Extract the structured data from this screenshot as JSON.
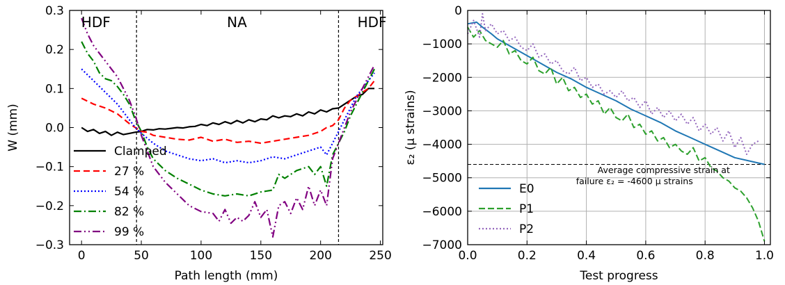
{
  "chart_data": [
    {
      "type": "line",
      "xlabel": "Path length (mm)",
      "ylabel": "W (mm)",
      "xlim": [
        -10,
        252
      ],
      "ylim": [
        -0.3,
        0.3
      ],
      "xticks": [
        "0",
        "50",
        "100",
        "150",
        "200",
        "250"
      ],
      "yticks": [
        "−0.3",
        "−0.2",
        "−0.1",
        "0.0",
        "0.1",
        "0.2",
        "0.3"
      ],
      "xtick_values": [
        0,
        50,
        100,
        150,
        200,
        250
      ],
      "ytick_values": [
        -0.3,
        -0.2,
        -0.1,
        0.0,
        0.1,
        0.2,
        0.3
      ],
      "grid": false,
      "legend": "lower-left",
      "vlines": [
        46,
        215
      ],
      "region_labels": [
        {
          "text": "HDF",
          "x": 12
        },
        {
          "text": "NA",
          "x": 130
        },
        {
          "text": "HDF",
          "x": 243
        }
      ],
      "series": [
        {
          "name": "Clamped",
          "color": "#000000",
          "dash": "",
          "x": [
            0,
            5,
            10,
            15,
            20,
            25,
            30,
            35,
            40,
            45,
            50,
            55,
            60,
            65,
            70,
            75,
            80,
            85,
            90,
            95,
            100,
            105,
            110,
            115,
            120,
            125,
            130,
            135,
            140,
            145,
            150,
            155,
            160,
            165,
            170,
            175,
            180,
            185,
            190,
            195,
            200,
            205,
            210,
            215,
            220,
            225,
            230,
            235,
            240,
            245
          ],
          "y": [
            0.0,
            -0.01,
            -0.005,
            -0.015,
            -0.01,
            -0.02,
            -0.012,
            -0.018,
            -0.015,
            -0.012,
            -0.01,
            -0.005,
            -0.006,
            -0.003,
            -0.004,
            -0.002,
            0.0,
            -0.001,
            0.002,
            0.003,
            0.008,
            0.005,
            0.012,
            0.008,
            0.015,
            0.01,
            0.018,
            0.012,
            0.02,
            0.015,
            0.022,
            0.02,
            0.03,
            0.025,
            0.03,
            0.028,
            0.035,
            0.03,
            0.04,
            0.035,
            0.045,
            0.04,
            0.048,
            0.05,
            0.06,
            0.07,
            0.08,
            0.085,
            0.1,
            0.1
          ]
        },
        {
          "name": "27 %",
          "color": "#ff0000",
          "dash": "9,5",
          "x": [
            0,
            10,
            20,
            30,
            40,
            45,
            50,
            55,
            60,
            70,
            80,
            90,
            100,
            110,
            120,
            130,
            140,
            150,
            160,
            170,
            180,
            190,
            200,
            205,
            210,
            215,
            220,
            225,
            230,
            235,
            240,
            245
          ],
          "y": [
            0.075,
            0.06,
            0.05,
            0.035,
            0.01,
            0.0,
            -0.01,
            -0.012,
            -0.02,
            -0.025,
            -0.03,
            -0.032,
            -0.025,
            -0.035,
            -0.03,
            -0.038,
            -0.035,
            -0.04,
            -0.035,
            -0.03,
            -0.025,
            -0.02,
            -0.01,
            0.0,
            0.005,
            0.02,
            0.05,
            0.07,
            0.08,
            0.09,
            0.1,
            0.12
          ]
        },
        {
          "name": "54 %",
          "color": "#0000ff",
          "dash": "2,3",
          "x": [
            0,
            10,
            20,
            30,
            40,
            45,
            50,
            60,
            70,
            80,
            90,
            100,
            110,
            120,
            130,
            140,
            150,
            160,
            170,
            180,
            190,
            200,
            205,
            210,
            215,
            220,
            225,
            230,
            235,
            240,
            245
          ],
          "y": [
            0.15,
            0.12,
            0.09,
            0.06,
            0.02,
            0.0,
            -0.015,
            -0.04,
            -0.06,
            -0.07,
            -0.08,
            -0.085,
            -0.08,
            -0.09,
            -0.085,
            -0.09,
            -0.085,
            -0.075,
            -0.08,
            -0.07,
            -0.06,
            -0.05,
            -0.07,
            -0.04,
            -0.01,
            0.02,
            0.05,
            0.08,
            0.1,
            0.12,
            0.14
          ]
        },
        {
          "name": "82 %",
          "color": "#008000",
          "dash": "11,4,2,4",
          "x": [
            0,
            5,
            10,
            15,
            20,
            25,
            30,
            35,
            40,
            45,
            50,
            55,
            60,
            70,
            80,
            90,
            100,
            110,
            120,
            130,
            140,
            150,
            160,
            165,
            170,
            180,
            190,
            195,
            200,
            205,
            210,
            215,
            220,
            225,
            230,
            235,
            240,
            245
          ],
          "y": [
            0.22,
            0.19,
            0.17,
            0.14,
            0.125,
            0.12,
            0.105,
            0.085,
            0.06,
            0.02,
            -0.01,
            -0.05,
            -0.08,
            -0.11,
            -0.13,
            -0.145,
            -0.16,
            -0.17,
            -0.175,
            -0.17,
            -0.175,
            -0.165,
            -0.16,
            -0.12,
            -0.13,
            -0.11,
            -0.1,
            -0.12,
            -0.1,
            -0.15,
            -0.07,
            -0.04,
            -0.01,
            0.03,
            0.06,
            0.09,
            0.12,
            0.15
          ]
        },
        {
          "name": "99 %",
          "color": "#800080",
          "dash": "11,4,2,4,2,4",
          "x": [
            0,
            5,
            10,
            15,
            20,
            25,
            30,
            35,
            40,
            45,
            50,
            55,
            60,
            70,
            80,
            90,
            100,
            110,
            115,
            120,
            125,
            130,
            135,
            140,
            145,
            150,
            155,
            160,
            165,
            170,
            175,
            180,
            185,
            190,
            195,
            200,
            205,
            210,
            215,
            220,
            225,
            230,
            235,
            240,
            245
          ],
          "y": [
            0.28,
            0.24,
            0.21,
            0.19,
            0.17,
            0.15,
            0.13,
            0.1,
            0.07,
            0.03,
            -0.02,
            -0.06,
            -0.1,
            -0.14,
            -0.17,
            -0.2,
            -0.215,
            -0.22,
            -0.24,
            -0.21,
            -0.245,
            -0.23,
            -0.24,
            -0.225,
            -0.19,
            -0.23,
            -0.21,
            -0.28,
            -0.2,
            -0.19,
            -0.22,
            -0.18,
            -0.21,
            -0.15,
            -0.2,
            -0.16,
            -0.2,
            -0.08,
            -0.04,
            0.0,
            0.04,
            0.07,
            0.1,
            0.13,
            0.16
          ]
        }
      ]
    },
    {
      "type": "line",
      "xlabel": "Test progress",
      "ylabel": "ε₂ (μ strains)",
      "xlim": [
        0.0,
        1.02
      ],
      "ylim": [
        -7000,
        0
      ],
      "xticks": [
        "0.0",
        "0.2",
        "0.4",
        "0.6",
        "0.8",
        "1.0"
      ],
      "yticks": [
        "0",
        "−1000",
        "−2000",
        "−3000",
        "−4000",
        "−5000",
        "−6000",
        "−7000"
      ],
      "xtick_values": [
        0,
        0.2,
        0.4,
        0.6,
        0.8,
        1.0
      ],
      "ytick_values": [
        0,
        -1000,
        -2000,
        -3000,
        -4000,
        -5000,
        -6000,
        -7000
      ],
      "grid": true,
      "legend": "lower-left",
      "hline": -4600,
      "annotation": {
        "line1": "Average compressive strain at",
        "line2": "failure ε₂ = -4600 μ strains",
        "x": 0.52,
        "y": -4900
      },
      "series": [
        {
          "name": "E0",
          "color": "#1f77b4",
          "dash": "",
          "x": [
            0.0,
            0.03,
            0.05,
            0.08,
            0.1,
            0.15,
            0.2,
            0.25,
            0.3,
            0.35,
            0.4,
            0.45,
            0.5,
            0.55,
            0.6,
            0.65,
            0.7,
            0.75,
            0.8,
            0.85,
            0.9,
            0.95,
            1.0
          ],
          "y": [
            -400,
            -350,
            -500,
            -700,
            -850,
            -1100,
            -1350,
            -1600,
            -1850,
            -2050,
            -2300,
            -2500,
            -2700,
            -2950,
            -3150,
            -3350,
            -3600,
            -3800,
            -4000,
            -4200,
            -4400,
            -4500,
            -4600
          ]
        },
        {
          "name": "P1",
          "color": "#2ca02c",
          "dash": "9,4",
          "x": [
            0.0,
            0.02,
            0.04,
            0.06,
            0.08,
            0.1,
            0.12,
            0.14,
            0.16,
            0.18,
            0.2,
            0.22,
            0.24,
            0.26,
            0.28,
            0.3,
            0.32,
            0.34,
            0.36,
            0.38,
            0.4,
            0.42,
            0.44,
            0.46,
            0.48,
            0.5,
            0.52,
            0.54,
            0.56,
            0.58,
            0.6,
            0.62,
            0.64,
            0.66,
            0.68,
            0.7,
            0.72,
            0.74,
            0.76,
            0.78,
            0.8,
            0.82,
            0.84,
            0.86,
            0.88,
            0.9,
            0.92,
            0.94,
            0.96,
            0.98,
            1.0
          ],
          "y": [
            -500,
            -800,
            -600,
            -900,
            -1000,
            -1100,
            -900,
            -1300,
            -1200,
            -1500,
            -1600,
            -1400,
            -1800,
            -1900,
            -1700,
            -2200,
            -2000,
            -2400,
            -2300,
            -2600,
            -2500,
            -2800,
            -2700,
            -3100,
            -2900,
            -3200,
            -3300,
            -3100,
            -3500,
            -3400,
            -3700,
            -3600,
            -3900,
            -3800,
            -4100,
            -4000,
            -4200,
            -4300,
            -4100,
            -4500,
            -4400,
            -4700,
            -4800,
            -5000,
            -5100,
            -5300,
            -5400,
            -5600,
            -5900,
            -6300,
            -6900
          ]
        },
        {
          "name": "P2",
          "color": "#9467bd",
          "dash": "2,3",
          "x": [
            0.0,
            0.02,
            0.04,
            0.05,
            0.06,
            0.08,
            0.1,
            0.12,
            0.14,
            0.16,
            0.18,
            0.2,
            0.22,
            0.24,
            0.26,
            0.28,
            0.3,
            0.32,
            0.34,
            0.36,
            0.38,
            0.4,
            0.42,
            0.44,
            0.46,
            0.48,
            0.5,
            0.52,
            0.54,
            0.56,
            0.58,
            0.6,
            0.62,
            0.64,
            0.66,
            0.68,
            0.7,
            0.72,
            0.74,
            0.76,
            0.78,
            0.8,
            0.82,
            0.84,
            0.86,
            0.88,
            0.9,
            0.92,
            0.94,
            0.96,
            0.98
          ],
          "y": [
            -700,
            -300,
            -800,
            -100,
            -600,
            -400,
            -700,
            -600,
            -900,
            -800,
            -1100,
            -1200,
            -1000,
            -1400,
            -1300,
            -1600,
            -1500,
            -1800,
            -1900,
            -1700,
            -2100,
            -2000,
            -2300,
            -2200,
            -2500,
            -2400,
            -2600,
            -2400,
            -2700,
            -2600,
            -2900,
            -2700,
            -3100,
            -2900,
            -3200,
            -3000,
            -3300,
            -3100,
            -3400,
            -3200,
            -3600,
            -3400,
            -3700,
            -3500,
            -3900,
            -3600,
            -4100,
            -3800,
            -4300,
            -4000,
            -3900
          ]
        }
      ]
    }
  ]
}
